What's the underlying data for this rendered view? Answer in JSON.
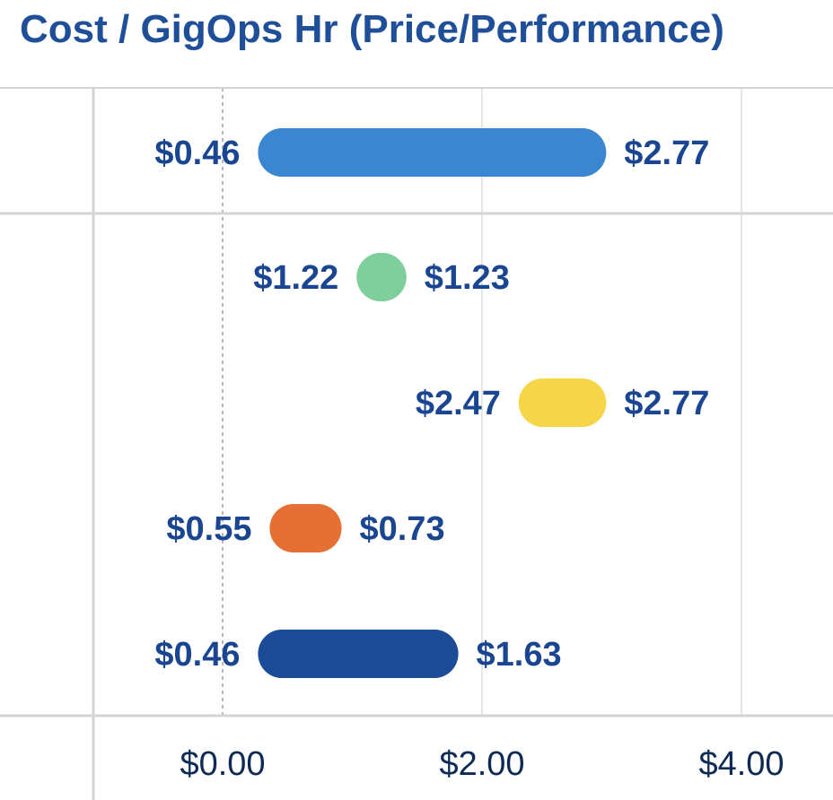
{
  "chart_data": {
    "type": "dumbbell",
    "title": "Cost / GigOps Hr (Price/Performance)",
    "xlim": [
      -1.0,
      4.6
    ],
    "x_ticks": [
      "$0.00",
      "$2.00",
      "$4.00"
    ],
    "x_tick_values": [
      0,
      2,
      4
    ],
    "grid": true,
    "series": [
      {
        "min": 0.46,
        "max": 2.77,
        "min_label": "$0.46",
        "max_label": "$2.77",
        "color": "#3b86d0"
      },
      {
        "min": 1.22,
        "max": 1.23,
        "min_label": "$1.22",
        "max_label": "$1.23",
        "color": "#7fcf9c"
      },
      {
        "min": 2.47,
        "max": 2.77,
        "min_label": "$2.47",
        "max_label": "$2.77",
        "color": "#f7d549"
      },
      {
        "min": 0.55,
        "max": 0.73,
        "min_label": "$0.55",
        "max_label": "$0.73",
        "color": "#e56f35"
      },
      {
        "min": 0.46,
        "max": 1.63,
        "min_label": "$0.46",
        "max_label": "$1.63",
        "color": "#1c4c97"
      }
    ],
    "groups": [
      [
        0
      ],
      [
        1,
        2,
        3,
        4
      ]
    ]
  }
}
